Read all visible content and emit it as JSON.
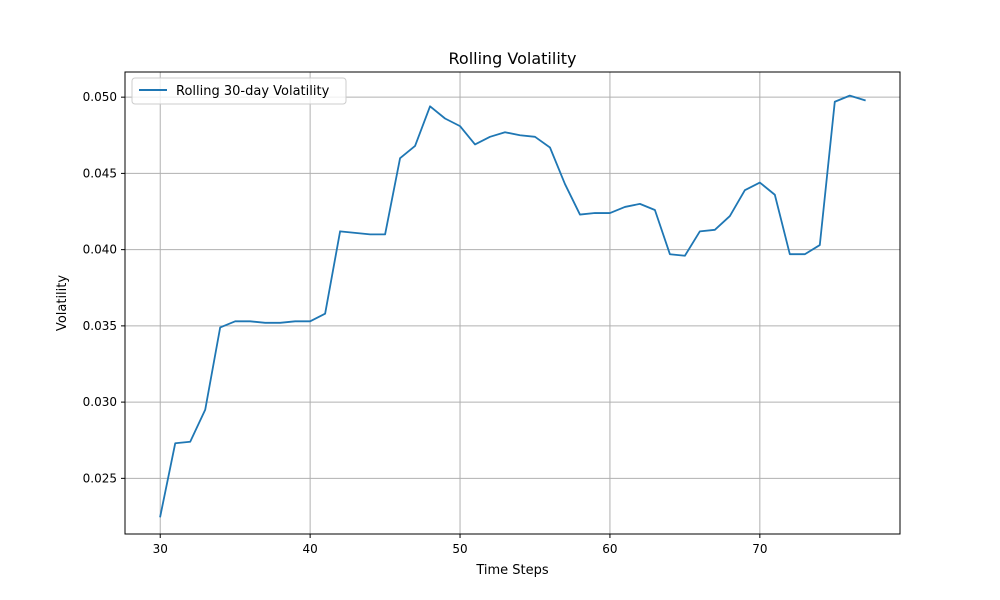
{
  "chart_data": {
    "type": "line",
    "title": "Rolling Volatility",
    "xlabel": "Time Steps",
    "ylabel": "Volatility",
    "xlim": [
      27.65,
      79.35
    ],
    "ylim": [
      0.02135,
      0.05165
    ],
    "xticks": [
      30,
      40,
      50,
      60,
      70
    ],
    "yticks": [
      0.025,
      0.03,
      0.035,
      0.04,
      0.045,
      0.05
    ],
    "ytick_labels": [
      "0.025",
      "0.030",
      "0.035",
      "0.040",
      "0.045",
      "0.050"
    ],
    "grid": true,
    "legend_position": "upper-left",
    "series": [
      {
        "name": "Rolling 30-day Volatility",
        "color": "#1f77b4",
        "x": [
          30,
          31,
          32,
          33,
          34,
          35,
          36,
          37,
          38,
          39,
          40,
          41,
          42,
          43,
          44,
          45,
          46,
          47,
          48,
          49,
          50,
          51,
          52,
          53,
          54,
          55,
          56,
          57,
          58,
          59,
          60,
          61,
          62,
          63,
          64,
          65,
          66,
          67,
          68,
          69,
          70,
          71,
          72,
          73,
          74,
          75,
          76,
          77
        ],
        "y": [
          0.0225,
          0.0273,
          0.0274,
          0.0295,
          0.0349,
          0.0353,
          0.0353,
          0.0352,
          0.0352,
          0.0353,
          0.0353,
          0.0358,
          0.0412,
          0.0411,
          0.041,
          0.041,
          0.046,
          0.0468,
          0.0494,
          0.0486,
          0.0481,
          0.0469,
          0.0474,
          0.0477,
          0.0475,
          0.0474,
          0.0467,
          0.0443,
          0.0423,
          0.0424,
          0.0424,
          0.0428,
          0.043,
          0.0426,
          0.0397,
          0.0396,
          0.0412,
          0.0413,
          0.0422,
          0.0439,
          0.0444,
          0.0436,
          0.0397,
          0.0397,
          0.0403,
          0.0497,
          0.0501,
          0.0498
        ]
      }
    ]
  }
}
